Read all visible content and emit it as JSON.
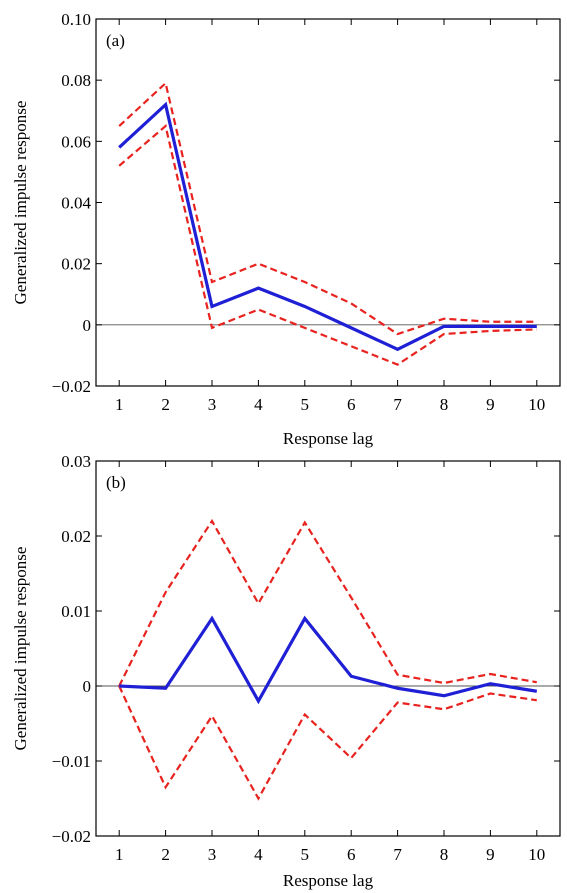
{
  "chart_data": [
    {
      "type": "line",
      "panel_label": "(a)",
      "xlabel": "Response lag",
      "ylabel": "Generalized impulse response",
      "x": [
        1,
        2,
        3,
        4,
        5,
        6,
        7,
        8,
        9,
        10
      ],
      "xlim": [
        0.5,
        10.5
      ],
      "ylim": [
        -0.02,
        0.1
      ],
      "yticks": [
        -0.02,
        0,
        0.02,
        0.04,
        0.06,
        0.08,
        0.1
      ],
      "ytick_labels": [
        "−0.02",
        "0",
        "0.02",
        "0.04",
        "0.06",
        "0.08",
        "0.10"
      ],
      "grid": false,
      "zero_line": true,
      "series": [
        {
          "role": "response",
          "color": "#1f1fd6",
          "style": "solid",
          "values": [
            0.058,
            0.072,
            0.006,
            0.012,
            0.006,
            -0.001,
            -0.008,
            -0.0005,
            -0.0005,
            -0.0005
          ]
        },
        {
          "role": "upper band",
          "color": "#e8231f",
          "style": "dashed",
          "values": [
            0.065,
            0.079,
            0.014,
            0.02,
            0.014,
            0.007,
            -0.003,
            0.002,
            0.001,
            0.001
          ]
        },
        {
          "role": "lower band",
          "color": "#e8231f",
          "style": "dashed",
          "values": [
            0.052,
            0.065,
            -0.001,
            0.005,
            -0.001,
            -0.007,
            -0.013,
            -0.003,
            -0.002,
            -0.0015
          ]
        }
      ]
    },
    {
      "type": "line",
      "panel_label": "(b)",
      "xlabel": "Response lag",
      "ylabel": "Generalized impulse response",
      "x": [
        1,
        2,
        3,
        4,
        5,
        6,
        7,
        8,
        9,
        10
      ],
      "xlim": [
        0.5,
        10.5
      ],
      "ylim": [
        -0.02,
        0.03
      ],
      "yticks": [
        -0.02,
        -0.01,
        0,
        0.01,
        0.02,
        0.03
      ],
      "ytick_labels": [
        "−0.02",
        "−0.01",
        "0",
        "0.01",
        "0.02",
        "0.03"
      ],
      "grid": false,
      "zero_line": true,
      "series": [
        {
          "role": "response",
          "color": "#1f1fd6",
          "style": "solid",
          "values": [
            0.0,
            -0.0003,
            0.009,
            -0.002,
            0.009,
            0.0013,
            -0.0003,
            -0.0013,
            0.0003,
            -0.0007
          ]
        },
        {
          "role": "upper band",
          "color": "#e8231f",
          "style": "dashed",
          "values": [
            0.0,
            0.0125,
            0.022,
            0.011,
            0.0218,
            0.0118,
            0.0015,
            0.0004,
            0.0016,
            0.0005
          ]
        },
        {
          "role": "lower band",
          "color": "#e8231f",
          "style": "dashed",
          "values": [
            0.0,
            -0.0135,
            -0.004,
            -0.015,
            -0.0038,
            -0.0096,
            -0.0022,
            -0.0031,
            -0.001,
            -0.0019
          ]
        }
      ]
    }
  ]
}
